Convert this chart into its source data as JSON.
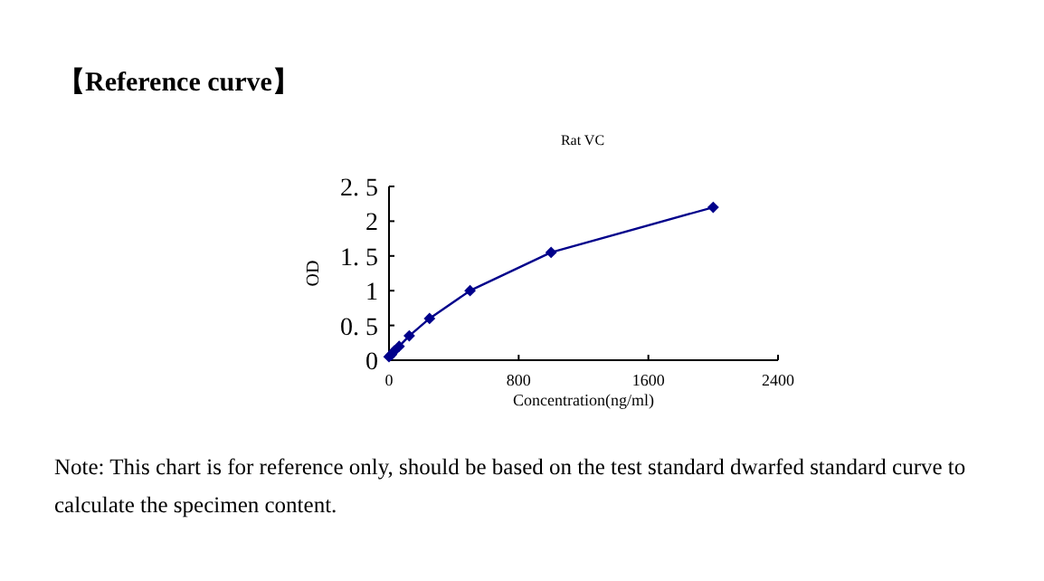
{
  "chart_data": {
    "type": "line",
    "title": "【Reference curve】",
    "subtitle": "Rat VC",
    "xlabel": "Concentration(ng/ml)",
    "ylabel": "OD",
    "x": [
      0,
      15.6,
      31.25,
      62.5,
      125,
      250,
      500,
      1000,
      2000
    ],
    "series": [
      {
        "color": "#00008b",
        "values": [
          0.05,
          0.08,
          0.13,
          0.2,
          0.35,
          0.6,
          1.0,
          1.55,
          2.2
        ]
      }
    ],
    "xlim": [
      0,
      2400
    ],
    "xticks": [
      0,
      800,
      1600,
      2400
    ],
    "ylim": [
      0,
      2.5
    ],
    "yticks": [
      0,
      {
        "value": 0.5,
        "label": "0. 5"
      },
      1,
      {
        "value": 1.5,
        "label": "1. 5"
      },
      2,
      {
        "value": 2.5,
        "label": "2. 5"
      }
    ],
    "marker": "diamond",
    "line_style": "solid",
    "annotations": [
      "Note: This chart is for reference only, should be based on the test standard dwarfed standard curve to calculate the specimen content."
    ]
  }
}
